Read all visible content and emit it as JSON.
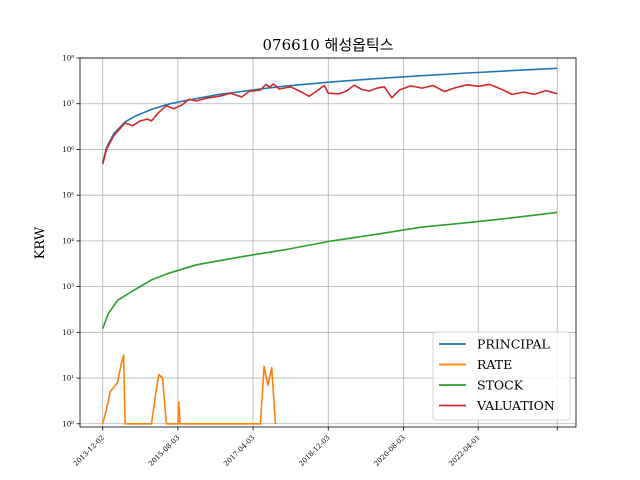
{
  "chart_data": {
    "type": "line",
    "title": "076610 해성옵틱스",
    "xlabel": "",
    "ylabel": "KRW",
    "yscale": "log",
    "ylim": [
      0.85,
      100000000
    ],
    "xlim": [
      "2013-06-01",
      "2024-06-01"
    ],
    "grid": true,
    "legend_position": "bottom-right",
    "x_ticks": [
      "2013-12-02",
      "2015-08-03",
      "2017-04-03",
      "2018-12-03",
      "2020-08-03",
      "2022-04-01"
    ],
    "y_ticks": [
      {
        "value": 1,
        "label": "10⁰"
      },
      {
        "value": 10,
        "label": "10¹"
      },
      {
        "value": 100,
        "label": "10²"
      },
      {
        "value": 1000,
        "label": "10³"
      },
      {
        "value": 10000,
        "label": "10⁴"
      },
      {
        "value": 100000,
        "label": "10⁵"
      },
      {
        "value": 1000000,
        "label": "10⁶"
      },
      {
        "value": 10000000,
        "label": "10⁷"
      },
      {
        "value": 100000000,
        "label": "10⁸"
      }
    ],
    "series": [
      {
        "name": "PRINCIPAL",
        "color": "#1f77b4",
        "points": [
          [
            "2013-12-02",
            500000
          ],
          [
            "2014-01-02",
            1100000
          ],
          [
            "2014-03-01",
            2200000
          ],
          [
            "2014-06-01",
            4000000
          ],
          [
            "2014-09-01",
            5500000
          ],
          [
            "2015-01-01",
            7500000
          ],
          [
            "2015-06-01",
            10000000
          ],
          [
            "2016-01-01",
            13000000
          ],
          [
            "2016-07-01",
            16000000
          ],
          [
            "2017-01-01",
            18500000
          ],
          [
            "2017-07-01",
            21500000
          ],
          [
            "2018-01-01",
            24500000
          ],
          [
            "2019-01-01",
            30000000
          ],
          [
            "2020-01-01",
            35500000
          ],
          [
            "2021-01-01",
            41000000
          ],
          [
            "2022-01-01",
            47000000
          ],
          [
            "2023-01-01",
            53000000
          ],
          [
            "2024-01-01",
            59500000
          ]
        ]
      },
      {
        "name": "RATE",
        "color": "#ff7f0e",
        "points": [
          [
            "2013-12-02",
            1
          ],
          [
            "2014-01-01",
            2
          ],
          [
            "2014-02-01",
            5
          ],
          [
            "2014-04-01",
            8
          ],
          [
            "2014-05-01",
            20
          ],
          [
            "2014-05-20",
            32
          ],
          [
            "2014-06-01",
            1
          ],
          [
            "2015-01-01",
            1
          ],
          [
            "2015-02-01",
            4
          ],
          [
            "2015-03-01",
            12
          ],
          [
            "2015-04-01",
            10
          ],
          [
            "2015-05-01",
            1
          ],
          [
            "2015-08-03",
            1
          ],
          [
            "2015-08-10",
            3
          ],
          [
            "2015-08-20",
            1
          ],
          [
            "2017-06-01",
            1
          ],
          [
            "2017-07-01",
            18
          ],
          [
            "2017-08-01",
            7
          ],
          [
            "2017-09-01",
            17
          ],
          [
            "2017-10-01",
            1
          ]
        ]
      },
      {
        "name": "STOCK",
        "color": "#2ca02c",
        "points": [
          [
            "2013-12-02",
            120
          ],
          [
            "2014-01-15",
            250
          ],
          [
            "2014-04-01",
            500
          ],
          [
            "2014-08-01",
            800
          ],
          [
            "2015-01-01",
            1400
          ],
          [
            "2015-06-01",
            2000
          ],
          [
            "2016-01-01",
            3000
          ],
          [
            "2017-01-01",
            4500
          ],
          [
            "2018-01-01",
            6500
          ],
          [
            "2019-01-01",
            10000
          ],
          [
            "2020-01-01",
            14000
          ],
          [
            "2021-01-01",
            20000
          ],
          [
            "2022-01-01",
            25000
          ],
          [
            "2023-01-01",
            32000
          ],
          [
            "2024-01-01",
            42000
          ]
        ]
      },
      {
        "name": "VALUATION",
        "color": "#d62728",
        "points": [
          [
            "2013-12-02",
            480000
          ],
          [
            "2014-01-02",
            1000000
          ],
          [
            "2014-03-01",
            2000000
          ],
          [
            "2014-06-01",
            3800000
          ],
          [
            "2014-08-01",
            3300000
          ],
          [
            "2014-10-01",
            4200000
          ],
          [
            "2014-12-01",
            4600000
          ],
          [
            "2015-01-01",
            4200000
          ],
          [
            "2015-03-01",
            6500000
          ],
          [
            "2015-05-01",
            9000000
          ],
          [
            "2015-07-01",
            7800000
          ],
          [
            "2015-09-01",
            9300000
          ],
          [
            "2015-11-01",
            12500000
          ],
          [
            "2016-01-01",
            11500000
          ],
          [
            "2016-04-01",
            13500000
          ],
          [
            "2016-07-01",
            14500000
          ],
          [
            "2016-10-01",
            17000000
          ],
          [
            "2017-01-01",
            14000000
          ],
          [
            "2017-03-01",
            18500000
          ],
          [
            "2017-06-01",
            20000000
          ],
          [
            "2017-07-15",
            26500000
          ],
          [
            "2017-08-15",
            23000000
          ],
          [
            "2017-09-15",
            27000000
          ],
          [
            "2017-11-01",
            21000000
          ],
          [
            "2018-02-01",
            23500000
          ],
          [
            "2018-05-01",
            18000000
          ],
          [
            "2018-07-01",
            14500000
          ],
          [
            "2018-09-01",
            19000000
          ],
          [
            "2018-11-01",
            25000000
          ],
          [
            "2018-12-03",
            17000000
          ],
          [
            "2019-03-01",
            16500000
          ],
          [
            "2019-05-01",
            19000000
          ],
          [
            "2019-07-01",
            25500000
          ],
          [
            "2019-09-01",
            20500000
          ],
          [
            "2019-11-01",
            19000000
          ],
          [
            "2020-01-01",
            22000000
          ],
          [
            "2020-03-01",
            23500000
          ],
          [
            "2020-05-01",
            13500000
          ],
          [
            "2020-07-01",
            20000000
          ],
          [
            "2020-10-01",
            24500000
          ],
          [
            "2021-01-01",
            22000000
          ],
          [
            "2021-04-01",
            25000000
          ],
          [
            "2021-07-01",
            18500000
          ],
          [
            "2021-10-01",
            22500000
          ],
          [
            "2022-01-01",
            26000000
          ],
          [
            "2022-04-01",
            24000000
          ],
          [
            "2022-07-01",
            26500000
          ],
          [
            "2022-10-01",
            21000000
          ],
          [
            "2023-01-01",
            16000000
          ],
          [
            "2023-04-01",
            18000000
          ],
          [
            "2023-07-01",
            16000000
          ],
          [
            "2023-10-01",
            19500000
          ],
          [
            "2024-01-01",
            16500000
          ]
        ]
      }
    ]
  }
}
